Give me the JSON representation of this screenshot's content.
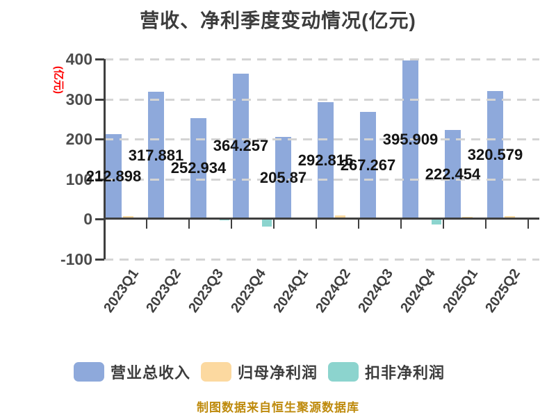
{
  "title": "营收、净利季度变动情况(亿元)",
  "y_axis_name": "(亿元)",
  "footer": "制图数据来自恒生聚源数据库",
  "legend": [
    {
      "label": "营业总收入",
      "color": "#8EA9DB"
    },
    {
      "label": "归母净利润",
      "color": "#FCD9A0"
    },
    {
      "label": "扣非净利润",
      "color": "#8CD4CE"
    }
  ],
  "colors": {
    "axis": "#3F3F3F",
    "gridline": "#D4D4D4",
    "title_text": "#3C3C3C",
    "tick_text": "#4D4D4D",
    "bar_label_text": "#141414",
    "y_name_text": "#FF0000",
    "footer_text": "#BE8A0C",
    "background": "#FFFFFF"
  },
  "chart_data": {
    "type": "bar",
    "title": "营收、净利季度变动情况(亿元)",
    "categories": [
      "2023Q1",
      "2023Q2",
      "2023Q3",
      "2023Q4",
      "2024Q1",
      "2024Q2",
      "2024Q3",
      "2024Q4",
      "2025Q1",
      "2025Q2"
    ],
    "series": [
      {
        "name": "营业总收入",
        "color": "#8EA9DB",
        "values": [
          212.898,
          317.881,
          252.934,
          364.257,
          205.87,
          292.815,
          267.267,
          395.909,
          222.454,
          320.579
        ],
        "labels_shown": true
      },
      {
        "name": "归母净利润",
        "color": "#FCD9A0",
        "values": [
          7.5,
          3.5,
          3,
          1,
          2.5,
          8,
          1.5,
          2,
          6,
          7
        ],
        "labels_shown": false,
        "estimated": true
      },
      {
        "name": "扣非净利润",
        "color": "#8CD4CE",
        "values": [
          3.5,
          1,
          -2.5,
          -19,
          3.5,
          3,
          1,
          -14,
          2,
          3.5
        ],
        "labels_shown": false,
        "estimated": true
      }
    ],
    "ylabel": "(亿元)",
    "ylim": [
      -100,
      400
    ],
    "yticks": [
      400,
      300,
      200,
      100,
      0,
      -100
    ],
    "grid": "dashed horizontal",
    "legend_position": "bottom",
    "xlabel_rotation_deg": 55
  }
}
